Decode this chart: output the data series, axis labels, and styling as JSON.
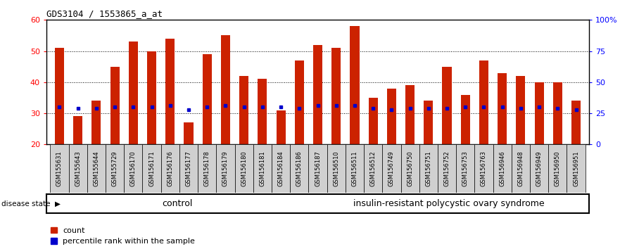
{
  "title": "GDS3104 / 1553865_a_at",
  "samples": [
    "GSM155631",
    "GSM155643",
    "GSM155644",
    "GSM155729",
    "GSM156170",
    "GSM156171",
    "GSM156176",
    "GSM156177",
    "GSM156178",
    "GSM156179",
    "GSM156180",
    "GSM156181",
    "GSM156184",
    "GSM156186",
    "GSM156187",
    "GSM156510",
    "GSM156511",
    "GSM156512",
    "GSM156749",
    "GSM156750",
    "GSM156751",
    "GSM156752",
    "GSM156753",
    "GSM156763",
    "GSM156946",
    "GSM156948",
    "GSM156949",
    "GSM156950",
    "GSM156951"
  ],
  "counts": [
    51,
    29,
    34,
    45,
    53,
    50,
    54,
    27,
    49,
    55,
    42,
    41,
    31,
    47,
    52,
    51,
    58,
    35,
    38,
    39,
    34,
    45,
    36,
    47,
    43,
    42,
    40,
    40,
    34
  ],
  "percentile_ranks": [
    30,
    29,
    29,
    30,
    30,
    30,
    31,
    28,
    30,
    31,
    30,
    30,
    30,
    29,
    31,
    31,
    31,
    29,
    28,
    29,
    29,
    29,
    30,
    30,
    30,
    29,
    30,
    29,
    28
  ],
  "control_count": 14,
  "disease_count": 15,
  "bar_color": "#cc2200",
  "dot_color": "#0000cc",
  "control_color": "#ccffcc",
  "disease_color": "#55cc55",
  "ylim_left": [
    20,
    60
  ],
  "ylim_right": [
    0,
    100
  ],
  "yticks_left": [
    20,
    30,
    40,
    50,
    60
  ],
  "yticks_right": [
    0,
    25,
    50,
    75,
    100
  ],
  "grid_values": [
    30,
    40,
    50
  ],
  "plot_bg_color": "#ffffff",
  "bar_width": 0.5,
  "legend_count_label": "count",
  "legend_pct_label": "percentile rank within the sample",
  "control_label": "control",
  "disease_label": "insulin-resistant polycystic ovary syndrome",
  "disease_state_label": "disease state"
}
